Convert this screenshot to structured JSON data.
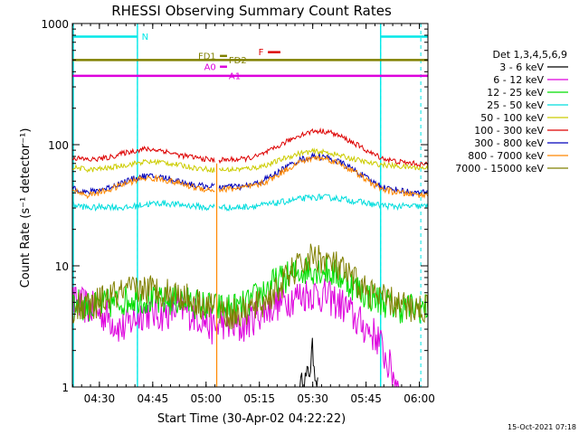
{
  "chart_data": {
    "type": "line",
    "title": "RHESSI Observing Summary Count Rates",
    "xlabel": "Start Time (30-Apr-02 04:22:22)",
    "ylabel": "Count Rate (s⁻¹ detector⁻¹)",
    "footer": "15-Oct-2021 07:18",
    "x_unit": "minutes after 04:22:22 UT",
    "xlim": [
      0,
      100
    ],
    "ylim": [
      1,
      1000
    ],
    "yscale": "log",
    "x_ticks": [
      {
        "label": "04:30",
        "x": 7.6
      },
      {
        "label": "04:45",
        "x": 22.6
      },
      {
        "label": "05:00",
        "x": 37.6
      },
      {
        "label": "05:15",
        "x": 52.6
      },
      {
        "label": "05:30",
        "x": 67.6
      },
      {
        "label": "05:45",
        "x": 82.6
      },
      {
        "label": "06:00",
        "x": 97.6
      }
    ],
    "y_ticks": [
      {
        "label": "1",
        "y": 1
      },
      {
        "label": "10",
        "y": 10
      },
      {
        "label": "100",
        "y": 100
      },
      {
        "label": "1000",
        "y": 1000
      }
    ],
    "legend": {
      "position": "right",
      "header": "Det 1,3,4,5,6,9",
      "entries": [
        "3 - 6 keV",
        "6 - 12 keV",
        "12 - 25 keV",
        "25 - 50 keV",
        "50 - 100 keV",
        "100 - 300 keV",
        "300 - 800 keV",
        "800 - 7000 keV",
        "7000 - 15000 keV"
      ]
    },
    "colors": {
      "c3_6": "#000000",
      "c6_12": "#dd00dd",
      "c12_25": "#00dd00",
      "c25_50": "#00dddd",
      "c50_100": "#cccc00",
      "c100_300": "#dd0000",
      "c300_800": "#0000bb",
      "c800_7000": "#ff8800",
      "c7000_15000": "#808000",
      "night": "#00e8e8"
    },
    "series": [
      {
        "name": "3 - 6 keV",
        "color_key": "c3_6",
        "points": [
          [
            64,
            1.0
          ],
          [
            66,
            1.2
          ],
          [
            67,
            1.5
          ],
          [
            67.5,
            2.0
          ],
          [
            68,
            1.6
          ],
          [
            69,
            1.0
          ]
        ]
      },
      {
        "name": "6 - 12 keV",
        "color_key": "c6_12",
        "points": [
          [
            0,
            5.0
          ],
          [
            5,
            4.5
          ],
          [
            10,
            3.8
          ],
          [
            14,
            3.0
          ],
          [
            20,
            4.2
          ],
          [
            25,
            4.0
          ],
          [
            30,
            4.5
          ],
          [
            36,
            3.8
          ],
          [
            40,
            3.0
          ],
          [
            42,
            3.5
          ],
          [
            47,
            3.0
          ],
          [
            52,
            4.0
          ],
          [
            57,
            4.8
          ],
          [
            62,
            5.5
          ],
          [
            67,
            6.0
          ],
          [
            72,
            5.5
          ],
          [
            77,
            4.5
          ],
          [
            80,
            3.5
          ],
          [
            83,
            3.0
          ],
          [
            86,
            2.5
          ],
          [
            89,
            1.5
          ],
          [
            92,
            1.0
          ]
        ]
      },
      {
        "name": "12 - 25 keV",
        "color_key": "c12_25",
        "points": [
          [
            0,
            5.0
          ],
          [
            6,
            4.5
          ],
          [
            12,
            5.0
          ],
          [
            18,
            5.5
          ],
          [
            24,
            5.0
          ],
          [
            30,
            5.2
          ],
          [
            36,
            4.8
          ],
          [
            40,
            4.5
          ],
          [
            43,
            4.5
          ],
          [
            47,
            4.5
          ],
          [
            50,
            5.0
          ],
          [
            53,
            6.0
          ],
          [
            56,
            7.0
          ],
          [
            60,
            8.0
          ],
          [
            64,
            9.0
          ],
          [
            68,
            9.5
          ],
          [
            72,
            9.0
          ],
          [
            76,
            8.0
          ],
          [
            80,
            6.5
          ],
          [
            84,
            5.5
          ],
          [
            88,
            5.0
          ],
          [
            92,
            4.5
          ],
          [
            96,
            4.5
          ],
          [
            100,
            4.5
          ]
        ]
      },
      {
        "name": "25 - 50 keV",
        "color_key": "c25_50",
        "points": [
          [
            0,
            32
          ],
          [
            5,
            30
          ],
          [
            10,
            31
          ],
          [
            15,
            30
          ],
          [
            20,
            32
          ],
          [
            25,
            33
          ],
          [
            30,
            32
          ],
          [
            35,
            31
          ],
          [
            38,
            30
          ],
          [
            40,
            31
          ],
          [
            45,
            30
          ],
          [
            50,
            31
          ],
          [
            55,
            32
          ],
          [
            60,
            34
          ],
          [
            65,
            36
          ],
          [
            70,
            37
          ],
          [
            75,
            36
          ],
          [
            80,
            34
          ],
          [
            85,
            32
          ],
          [
            90,
            31
          ],
          [
            95,
            31
          ],
          [
            100,
            31
          ]
        ]
      },
      {
        "name": "50 - 100 keV",
        "color_key": "c50_100",
        "points": [
          [
            0,
            65
          ],
          [
            5,
            62
          ],
          [
            10,
            64
          ],
          [
            15,
            68
          ],
          [
            20,
            72
          ],
          [
            25,
            72
          ],
          [
            30,
            68
          ],
          [
            35,
            64
          ],
          [
            40,
            62
          ],
          [
            43,
            62
          ],
          [
            48,
            63
          ],
          [
            52,
            65
          ],
          [
            56,
            70
          ],
          [
            60,
            78
          ],
          [
            64,
            85
          ],
          [
            68,
            88
          ],
          [
            72,
            86
          ],
          [
            76,
            80
          ],
          [
            80,
            75
          ],
          [
            84,
            70
          ],
          [
            88,
            68
          ],
          [
            92,
            66
          ],
          [
            96,
            65
          ],
          [
            100,
            64
          ]
        ]
      },
      {
        "name": "100 - 300 keV",
        "color_key": "c100_300",
        "points": [
          [
            0,
            78
          ],
          [
            5,
            75
          ],
          [
            10,
            78
          ],
          [
            15,
            86
          ],
          [
            20,
            92
          ],
          [
            25,
            90
          ],
          [
            30,
            82
          ],
          [
            35,
            78
          ],
          [
            40,
            74
          ],
          [
            43,
            75
          ],
          [
            48,
            76
          ],
          [
            52,
            80
          ],
          [
            56,
            90
          ],
          [
            60,
            105
          ],
          [
            64,
            120
          ],
          [
            68,
            130
          ],
          [
            72,
            128
          ],
          [
            76,
            115
          ],
          [
            80,
            100
          ],
          [
            84,
            85
          ],
          [
            88,
            76
          ],
          [
            92,
            72
          ],
          [
            96,
            70
          ],
          [
            100,
            68
          ]
        ]
      },
      {
        "name": "300 - 800 keV",
        "color_key": "c300_800",
        "points": [
          [
            0,
            45
          ],
          [
            4,
            40
          ],
          [
            10,
            44
          ],
          [
            15,
            50
          ],
          [
            20,
            55
          ],
          [
            25,
            54
          ],
          [
            30,
            50
          ],
          [
            35,
            46
          ],
          [
            40,
            45
          ],
          [
            43,
            45
          ],
          [
            48,
            45
          ],
          [
            52,
            48
          ],
          [
            56,
            55
          ],
          [
            60,
            65
          ],
          [
            64,
            75
          ],
          [
            68,
            80
          ],
          [
            72,
            78
          ],
          [
            76,
            70
          ],
          [
            80,
            60
          ],
          [
            84,
            50
          ],
          [
            88,
            44
          ],
          [
            92,
            42
          ],
          [
            96,
            40
          ],
          [
            100,
            40
          ]
        ]
      },
      {
        "name": "800 - 7000 keV",
        "color_key": "c800_7000",
        "points": [
          [
            0,
            43
          ],
          [
            4,
            38
          ],
          [
            10,
            42
          ],
          [
            15,
            48
          ],
          [
            20,
            53
          ],
          [
            25,
            52
          ],
          [
            30,
            48
          ],
          [
            35,
            44
          ],
          [
            40,
            42
          ],
          [
            43,
            43
          ],
          [
            48,
            44
          ],
          [
            52,
            46
          ],
          [
            56,
            52
          ],
          [
            60,
            62
          ],
          [
            64,
            72
          ],
          [
            68,
            78
          ],
          [
            72,
            76
          ],
          [
            76,
            68
          ],
          [
            80,
            58
          ],
          [
            84,
            48
          ],
          [
            88,
            42
          ],
          [
            92,
            40
          ],
          [
            96,
            39
          ],
          [
            100,
            38
          ]
        ]
      },
      {
        "name": "7000 - 15000 keV",
        "color_key": "c7000_15000",
        "points": [
          [
            0,
            4.5
          ],
          [
            5,
            4.5
          ],
          [
            10,
            5.5
          ],
          [
            15,
            6.0
          ],
          [
            20,
            6.5
          ],
          [
            25,
            6.2
          ],
          [
            30,
            5.8
          ],
          [
            35,
            5.0
          ],
          [
            40,
            4.5
          ],
          [
            43,
            4.0
          ],
          [
            47,
            4.0
          ],
          [
            51,
            4.5
          ],
          [
            54,
            5.0
          ],
          [
            58,
            6.5
          ],
          [
            62,
            9.0
          ],
          [
            66,
            11.0
          ],
          [
            68,
            12.0
          ],
          [
            70,
            11.5
          ],
          [
            74,
            10.0
          ],
          [
            78,
            8.0
          ],
          [
            82,
            6.5
          ],
          [
            86,
            5.5
          ],
          [
            90,
            5.0
          ],
          [
            94,
            4.5
          ],
          [
            98,
            4.5
          ],
          [
            100,
            4.5
          ]
        ]
      }
    ],
    "attenuator_drop": {
      "x": 40.6,
      "min": 1.0
    },
    "night_intervals": [
      [
        -1,
        18.3
      ],
      [
        86.7,
        101
      ]
    ],
    "night_dashed_at": [
      18.3,
      86.7,
      98.0
    ],
    "night_bar_level": 780,
    "flags": [
      {
        "label": "N",
        "start": 0,
        "end": 18.3,
        "level": 780,
        "color_key": "night",
        "label_x": 19.5,
        "label_side": "right"
      },
      {
        "label": "",
        "start": 86.7,
        "end": 101,
        "level": 780,
        "color_key": "night",
        "label_x": 0,
        "label_side": "none"
      },
      {
        "label": "F",
        "start": 55.0,
        "end": 58.5,
        "level": 580,
        "color_key": "c100_300",
        "label_x": 53.8,
        "label_side": "left"
      },
      {
        "label": "FD1",
        "start": 41.5,
        "end": 43.5,
        "level": 540,
        "color_key": "c7000_15000",
        "label_x": 40.4,
        "label_side": "left"
      },
      {
        "label": "FD2",
        "start": 0,
        "end": 100,
        "level": 500,
        "color_key": "c7000_15000",
        "label_x": 44.0,
        "label_side": "right"
      },
      {
        "label": "A0",
        "start": 41.5,
        "end": 43.5,
        "level": 440,
        "color_key": "c6_12",
        "label_x": 40.4,
        "label_side": "left"
      },
      {
        "label": "A1",
        "start": 0,
        "end": 100,
        "level": 370,
        "color_key": "c6_12",
        "label_x": 44.0,
        "label_side": "right"
      }
    ]
  }
}
